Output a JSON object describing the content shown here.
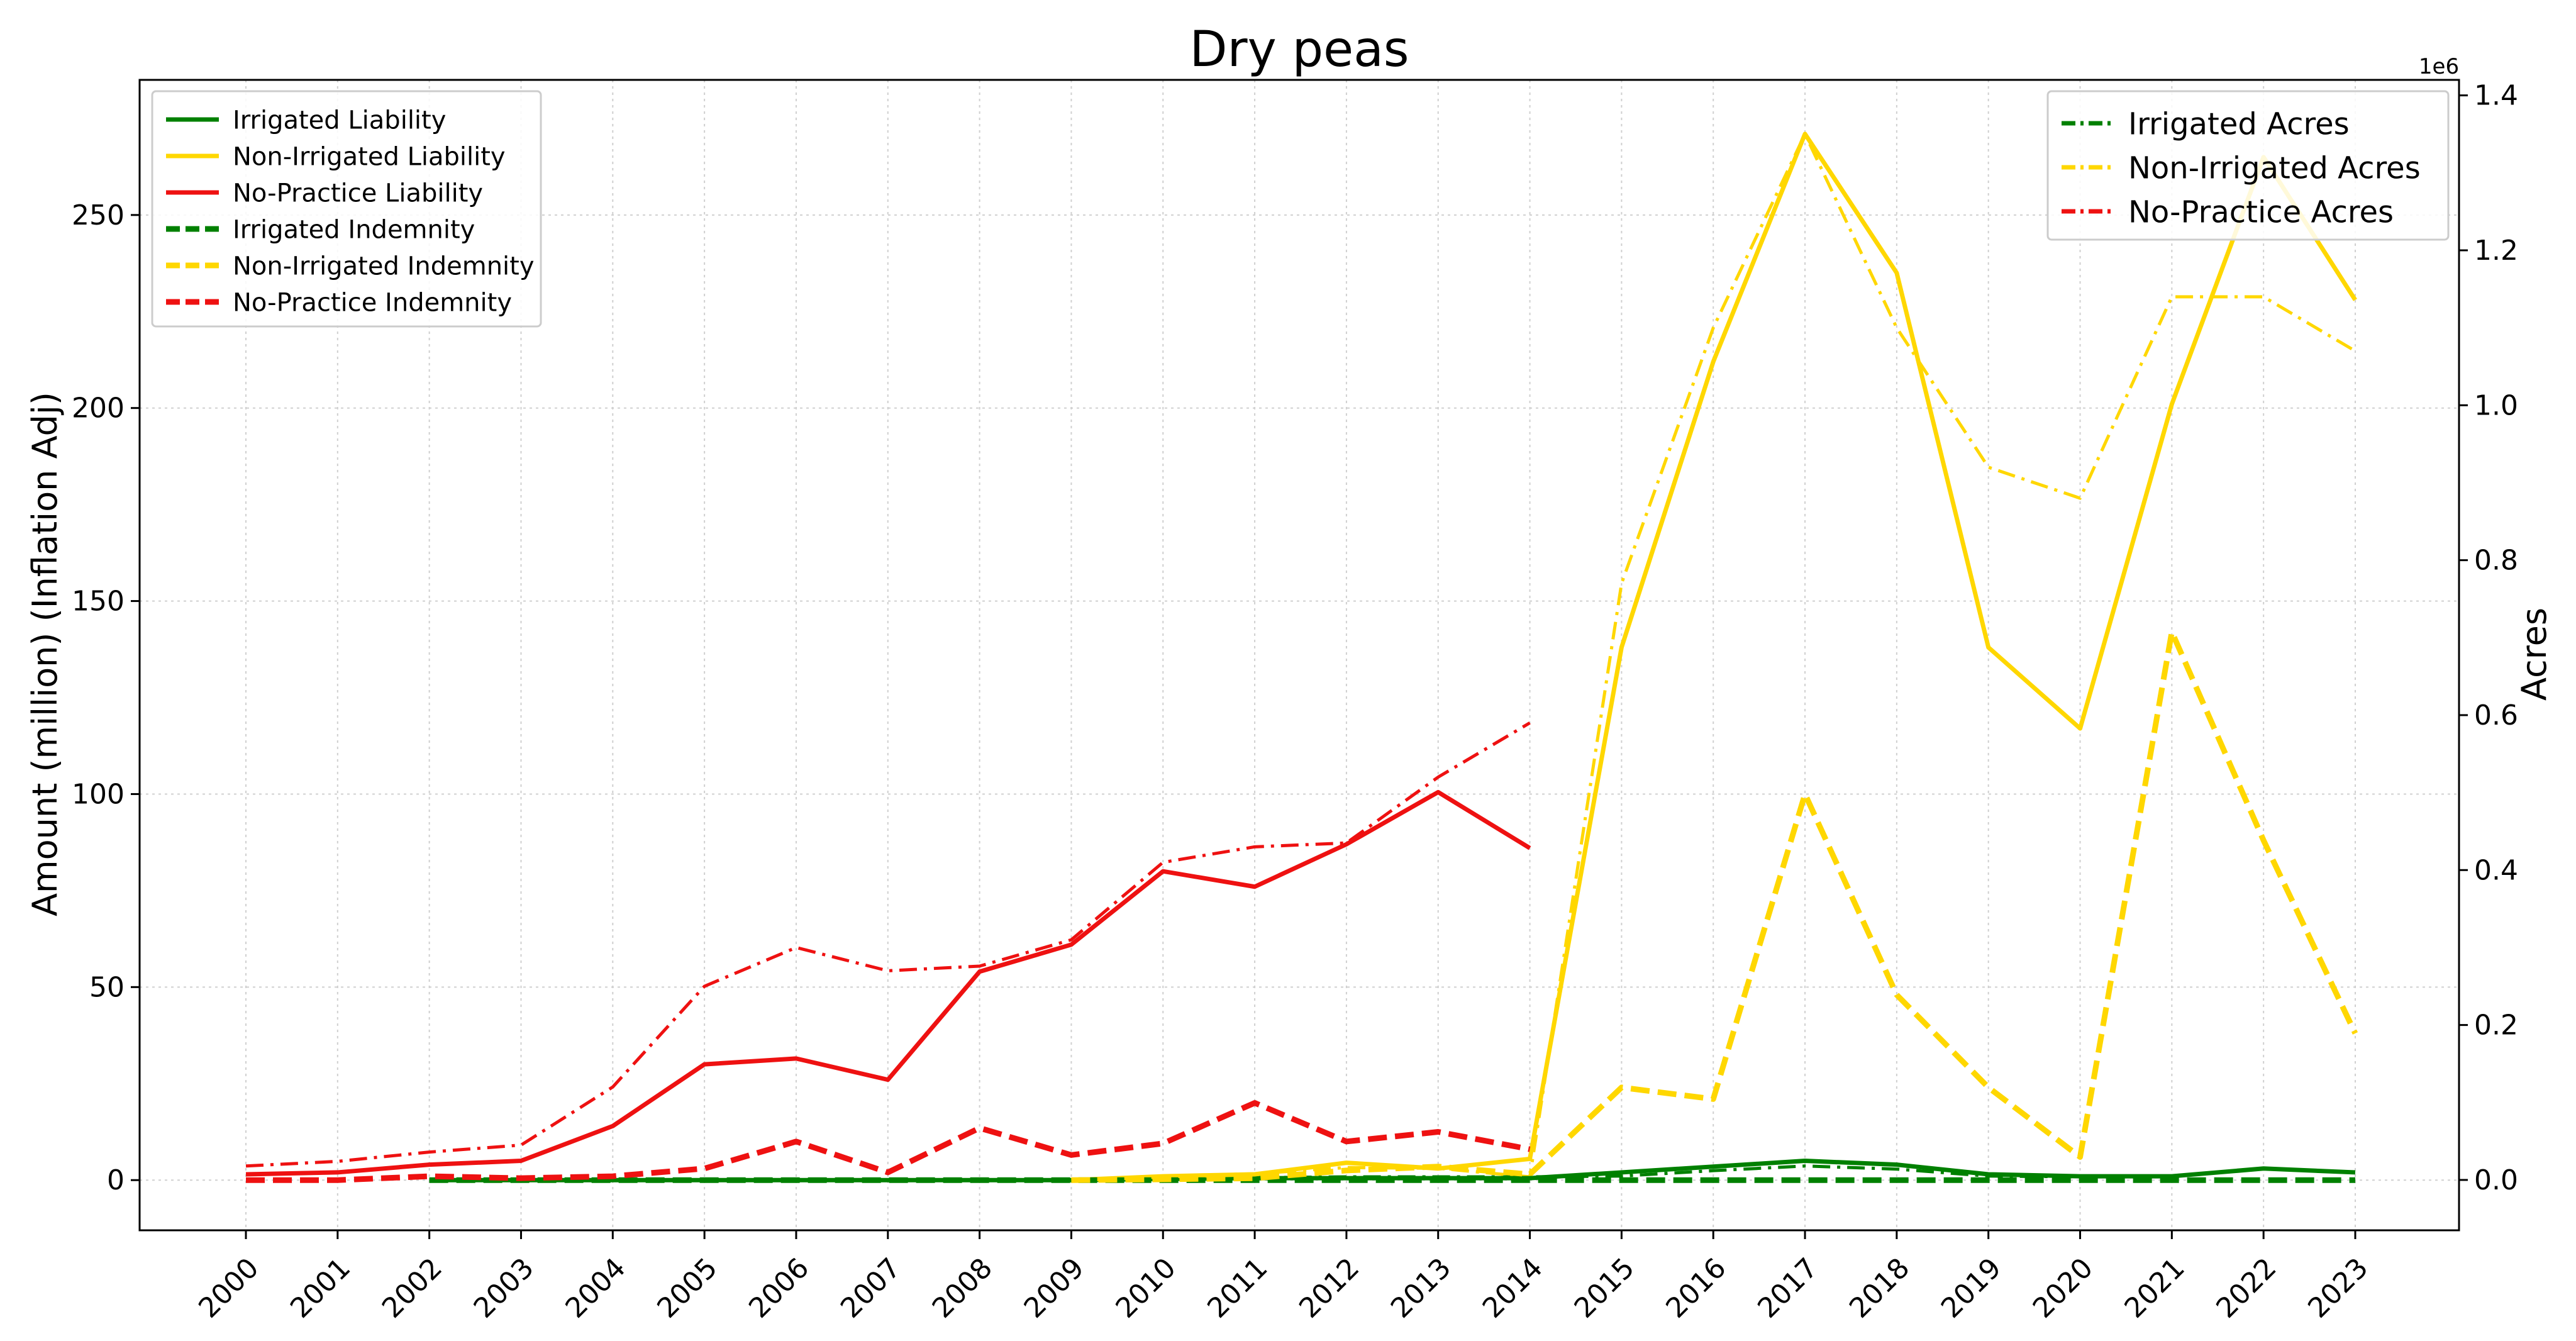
{
  "chart_data": {
    "type": "line",
    "title": "Dry peas",
    "ylabel": "Amount (million) (Inflation Adj)",
    "y2label": "Acres",
    "y2_offset_label": "1e6",
    "ylim": [
      -13,
      285
    ],
    "y2lim": [
      -0.065,
      1.42
    ],
    "yticks": [
      0,
      50,
      100,
      150,
      200,
      250
    ],
    "y2ticks": [
      0.0,
      0.2,
      0.4,
      0.6,
      0.8,
      1.0,
      1.2,
      1.4
    ],
    "grid": true,
    "categories": [
      "2000",
      "2001",
      "2002",
      "2003",
      "2004",
      "2005",
      "2006",
      "2007",
      "2008",
      "2009",
      "2010",
      "2011",
      "2012",
      "2013",
      "2014",
      "2015",
      "2016",
      "2017",
      "2018",
      "2019",
      "2020",
      "2021",
      "2022",
      "2023"
    ],
    "series_left": [
      {
        "name": "Irrigated Liability",
        "color": "#008000",
        "style": "solid",
        "values": [
          null,
          null,
          0,
          0,
          0,
          0,
          0,
          0,
          0,
          0,
          0.3,
          0.5,
          0.5,
          0.5,
          0.5,
          2,
          3.5,
          5,
          4,
          1.5,
          1,
          1,
          3,
          2
        ]
      },
      {
        "name": "Non-Irrigated Liability",
        "color": "#FFD700",
        "style": "solid",
        "values": [
          null,
          null,
          null,
          null,
          null,
          null,
          null,
          null,
          null,
          0,
          1,
          1.5,
          4.5,
          3,
          5.5,
          138,
          212,
          271,
          235,
          138,
          117,
          201,
          265,
          228
        ]
      },
      {
        "name": "No-Practice Liability",
        "color": "#EE1111",
        "style": "solid",
        "values": [
          1.5,
          2,
          4,
          5,
          14,
          30,
          31.5,
          26,
          54,
          61,
          80,
          76,
          87,
          100.5,
          86,
          null,
          null,
          null,
          null,
          null,
          null,
          null,
          null,
          null
        ]
      },
      {
        "name": "Irrigated Indemnity",
        "color": "#008000",
        "style": "dashed",
        "values": [
          null,
          null,
          0,
          0,
          0,
          0,
          0,
          0,
          0,
          0,
          0,
          0,
          0,
          0,
          0,
          0,
          0,
          0,
          0,
          0,
          0,
          0,
          0,
          0
        ]
      },
      {
        "name": "Non-Irrigated Indemnity",
        "color": "#FFD700",
        "style": "dashed",
        "values": [
          null,
          null,
          null,
          null,
          null,
          null,
          null,
          null,
          null,
          0,
          0.2,
          0.5,
          2.5,
          3.5,
          1.5,
          24,
          21,
          100,
          48,
          24,
          6,
          142,
          88,
          38
        ]
      },
      {
        "name": "No-Practice Indemnity",
        "color": "#EE1111",
        "style": "dashed",
        "values": [
          0,
          0,
          1,
          0.5,
          1,
          3,
          10,
          2,
          13.5,
          6.5,
          9.5,
          20,
          10,
          12.5,
          8,
          null,
          null,
          null,
          null,
          null,
          null,
          null,
          null,
          null
        ]
      }
    ],
    "series_right": [
      {
        "name": "Irrigated Acres",
        "color": "#008000",
        "style": "dashdot",
        "values": [
          null,
          null,
          0,
          0,
          0,
          0,
          0,
          0,
          0,
          0,
          0.002,
          0.003,
          0.004,
          0.004,
          0.004,
          0.005,
          0.012,
          0.018,
          0.014,
          0.005,
          0.004,
          0.005,
          0.015,
          0.01
        ]
      },
      {
        "name": "Non-Irrigated Acres",
        "color": "#FFD700",
        "style": "dashdot",
        "values": [
          null,
          null,
          null,
          null,
          null,
          null,
          null,
          null,
          null,
          0,
          0.005,
          0.008,
          0.016,
          0.015,
          0.004,
          0.77,
          1.1,
          1.35,
          1.1,
          0.92,
          0.88,
          1.14,
          1.14,
          1.07
        ]
      },
      {
        "name": "No-Practice Acres",
        "color": "#EE1111",
        "style": "dashdot",
        "values": [
          0.018,
          0.024,
          0.036,
          0.045,
          0.12,
          0.25,
          0.3,
          0.27,
          0.276,
          0.31,
          0.41,
          0.43,
          0.435,
          0.52,
          0.59,
          null,
          null,
          null,
          null,
          null,
          null,
          null,
          null,
          null
        ]
      }
    ],
    "legend_left_position": "upper-left",
    "legend_right_position": "upper-right"
  }
}
